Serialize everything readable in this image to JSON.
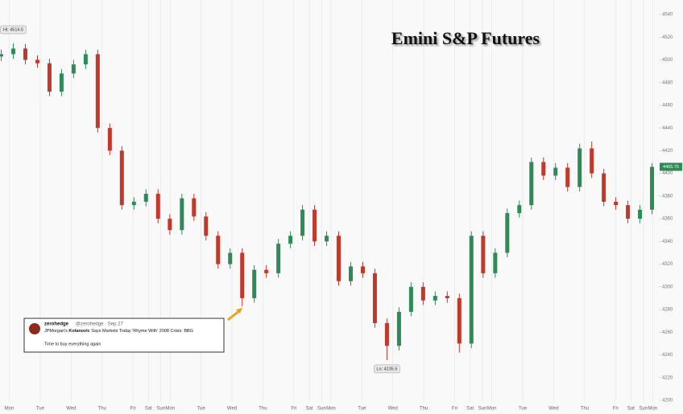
{
  "chart_data": {
    "type": "candlestick",
    "title": "Emini S&P Futures",
    "up_color": "#2e8b57",
    "down_color": "#c0392b",
    "grid": true,
    "xlim": [
      -0.3,
      21
    ],
    "ylim": [
      4200,
      4540
    ],
    "yticks": [
      4540,
      4520,
      4500,
      4480,
      4460,
      4440,
      4420,
      4400,
      4380,
      4360,
      4340,
      4320,
      4300,
      4280,
      4260,
      4240,
      4220,
      4200
    ],
    "xticks": [
      {
        "value": 0,
        "label": "Mon"
      },
      {
        "value": 1,
        "label": "Tue"
      },
      {
        "value": 2,
        "label": "Wed"
      },
      {
        "value": 3,
        "label": "Thu"
      },
      {
        "value": 4,
        "label": "Fri"
      },
      {
        "value": 4.5,
        "label": "Sat"
      },
      {
        "value": 4.9,
        "label": "Sun"
      },
      {
        "value": 5.2,
        "label": "Mon"
      },
      {
        "value": 6.2,
        "label": "Tue"
      },
      {
        "value": 7.2,
        "label": "Wed"
      },
      {
        "value": 8.2,
        "label": "Thu"
      },
      {
        "value": 9.2,
        "label": "Fri"
      },
      {
        "value": 9.7,
        "label": "Sat"
      },
      {
        "value": 10.1,
        "label": "Sun"
      },
      {
        "value": 10.4,
        "label": "Mon"
      },
      {
        "value": 11.4,
        "label": "Tue"
      },
      {
        "value": 12.4,
        "label": "Wed"
      },
      {
        "value": 13.4,
        "label": "Thu"
      },
      {
        "value": 14.4,
        "label": "Fri"
      },
      {
        "value": 14.9,
        "label": "Sat"
      },
      {
        "value": 15.3,
        "label": "Sun"
      },
      {
        "value": 15.6,
        "label": "Mon"
      },
      {
        "value": 16.6,
        "label": "Tue"
      },
      {
        "value": 17.6,
        "label": "Wed"
      },
      {
        "value": 18.6,
        "label": "Thu"
      },
      {
        "value": 19.6,
        "label": "Fri"
      },
      {
        "value": 20.1,
        "label": "Sat"
      },
      {
        "value": 20.5,
        "label": "Sun"
      },
      {
        "value": 20.8,
        "label": "Mon"
      }
    ],
    "x": [
      -0.26,
      0.13,
      0.52,
      0.91,
      1.3,
      1.69,
      2.08,
      2.47,
      2.86,
      3.25,
      3.64,
      4.03,
      4.42,
      4.81,
      5.19,
      5.58,
      5.97,
      6.36,
      6.75,
      7.14,
      7.53,
      7.92,
      8.31,
      8.7,
      9.09,
      9.48,
      9.87,
      10.26,
      10.65,
      11.04,
      11.43,
      11.82,
      12.21,
      12.6,
      12.99,
      13.38,
      13.77,
      14.16,
      14.55,
      14.94,
      15.32,
      15.71,
      16.1,
      16.49,
      16.88,
      17.27,
      17.66,
      18.05,
      18.44,
      18.83,
      19.22,
      19.61,
      20.0,
      20.39,
      20.78
    ],
    "open": [
      4503,
      4505,
      4510,
      4500,
      4497,
      4472,
      4488,
      4496,
      4505,
      4440,
      4420,
      4372,
      4375,
      4382,
      4360,
      4350,
      4378,
      4362,
      4345,
      4320,
      4330,
      4290,
      4315,
      4312,
      4338,
      4345,
      4368,
      4340,
      4345,
      4305,
      4318,
      4312,
      4268,
      4248,
      4278,
      4300,
      4288,
      4292,
      4290,
      4250,
      4345,
      4312,
      4330,
      4365,
      4372,
      4410,
      4398,
      4405,
      4388,
      4422,
      4400,
      4375,
      4372,
      4360,
      4368
    ],
    "high": [
      4509,
      4514.5,
      4514,
      4504,
      4501,
      4492,
      4500,
      4509,
      4509,
      4444,
      4424,
      4379,
      4386,
      4386,
      4364,
      4382,
      4382,
      4366,
      4349,
      4334,
      4334,
      4319,
      4319,
      4342,
      4349,
      4372,
      4372,
      4349,
      4349,
      4322,
      4322,
      4316,
      4272,
      4282,
      4304,
      4304,
      4296,
      4296,
      4294,
      4349,
      4349,
      4334,
      4369,
      4376,
      4414,
      4414,
      4409,
      4409,
      4426,
      4428,
      4404,
      4379,
      4376,
      4372,
      4409
    ],
    "low": [
      4499,
      4501,
      4496,
      4493,
      4468,
      4468,
      4484,
      4492,
      4436,
      4416,
      4368,
      4368,
      4371,
      4356,
      4346,
      4346,
      4358,
      4341,
      4316,
      4316,
      4283,
      4286,
      4308,
      4308,
      4334,
      4341,
      4336,
      4336,
      4301,
      4301,
      4308,
      4264,
      4235.5,
      4244,
      4274,
      4284,
      4284,
      4286,
      4242,
      4246,
      4308,
      4308,
      4326,
      4361,
      4368,
      4394,
      4394,
      4384,
      4384,
      4396,
      4371,
      4368,
      4356,
      4356,
      4364
    ],
    "close": [
      4505,
      4510,
      4500,
      4497,
      4472,
      4488,
      4496,
      4505,
      4440,
      4420,
      4372,
      4375,
      4382,
      4360,
      4350,
      4378,
      4362,
      4345,
      4320,
      4330,
      4290,
      4315,
      4312,
      4338,
      4345,
      4368,
      4340,
      4345,
      4305,
      4318,
      4312,
      4268,
      4248,
      4278,
      4300,
      4288,
      4292,
      4290,
      4250,
      4345,
      4312,
      4330,
      4365,
      4372,
      4410,
      4398,
      4405,
      4388,
      4422,
      4400,
      4375,
      4372,
      4360,
      4368,
      4405.75
    ],
    "high_label": "Hi: 4514.5",
    "low_label": "Lo: 4235.5",
    "last_label": "4405.75",
    "tweet": {
      "name": "zerohedge",
      "handle": "@zerohedge · Sep 27",
      "text_before": "JPMorgan's ",
      "text_bold": "Kolanovic",
      "text_after": " Says Markets Today 'Rhyme With' 2008 Crisis: BBG",
      "body": "Time to buy everything again"
    }
  }
}
